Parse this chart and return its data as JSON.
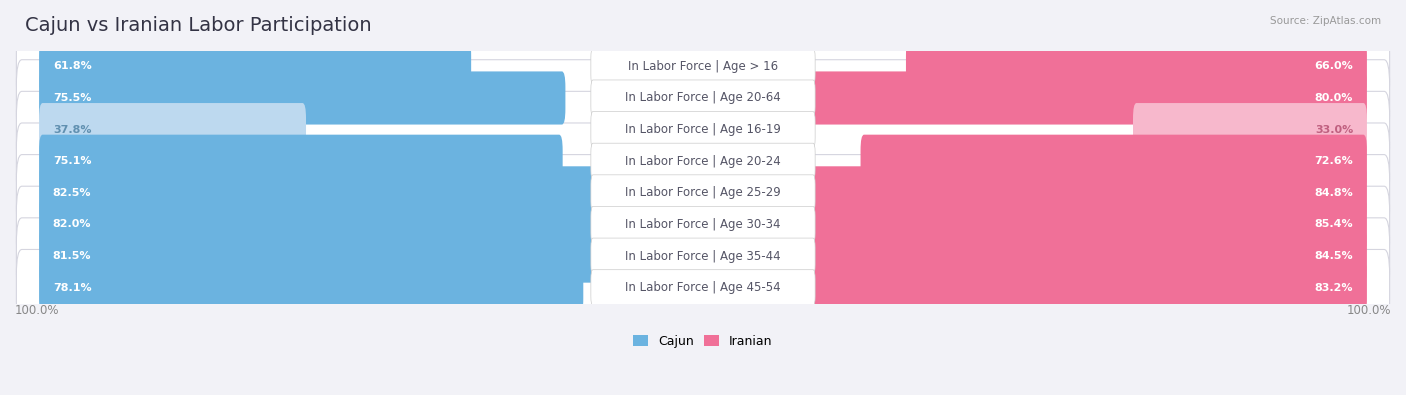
{
  "title": "Cajun vs Iranian Labor Participation",
  "source": "Source: ZipAtlas.com",
  "categories": [
    "In Labor Force | Age > 16",
    "In Labor Force | Age 20-64",
    "In Labor Force | Age 16-19",
    "In Labor Force | Age 20-24",
    "In Labor Force | Age 25-29",
    "In Labor Force | Age 30-34",
    "In Labor Force | Age 35-44",
    "In Labor Force | Age 45-54"
  ],
  "cajun_values": [
    61.8,
    75.5,
    37.8,
    75.1,
    82.5,
    82.0,
    81.5,
    78.1
  ],
  "iranian_values": [
    66.0,
    80.0,
    33.0,
    72.6,
    84.8,
    85.4,
    84.5,
    83.2
  ],
  "cajun_color": "#6BB3E0",
  "iranian_color": "#F07098",
  "cajun_color_light": "#BDD9EF",
  "iranian_color_light": "#F7B8CC",
  "pill_color": "#E8E8EE",
  "pill_color_alt": "#EDEDF2",
  "bg_color": "#F2F2F7",
  "title_fontsize": 14,
  "label_fontsize": 8.5,
  "value_fontsize": 8.0,
  "legend_fontsize": 9,
  "axis_label_fontsize": 8.5
}
